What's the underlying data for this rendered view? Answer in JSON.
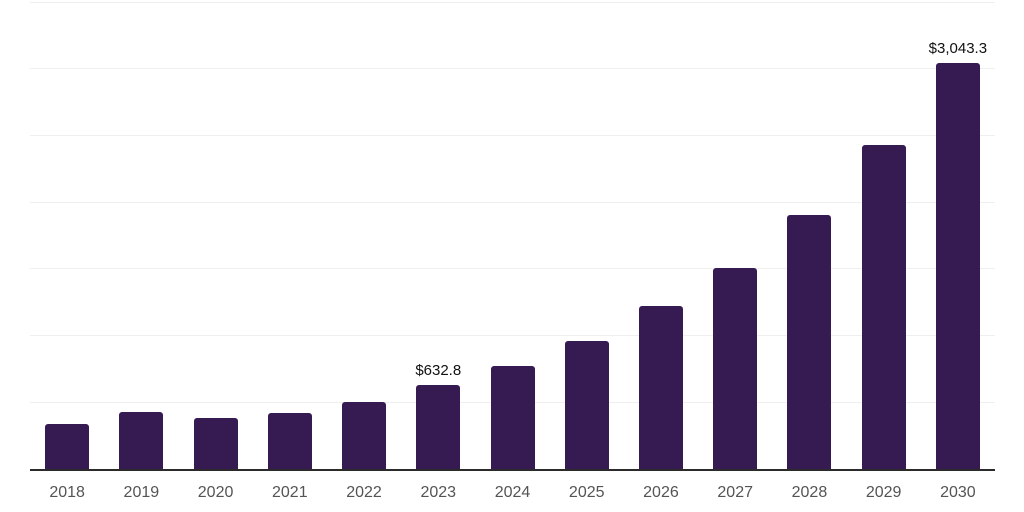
{
  "chart_data": {
    "type": "bar",
    "title": "",
    "xlabel": "",
    "ylabel": "",
    "categories": [
      "2018",
      "2019",
      "2020",
      "2021",
      "2022",
      "2023",
      "2024",
      "2025",
      "2026",
      "2027",
      "2028",
      "2029",
      "2030"
    ],
    "values": [
      335,
      425,
      380,
      420,
      505,
      632.8,
      775,
      960,
      1220,
      1510,
      1905,
      2425,
      3043.3
    ],
    "value_labels": [
      "",
      "",
      "",
      "",
      "",
      "$632.8",
      "",
      "",
      "",
      "",
      "",
      "",
      "$3,043.3"
    ],
    "ylim": [
      0,
      3500
    ],
    "gridline_step": 500,
    "grid": true,
    "legend": false,
    "y_tick_labels_visible": false,
    "bar_color": "#361a52",
    "axis_line_color": "#2b2b2b",
    "gridline_color": "#efefef",
    "tick_label_color": "#545454",
    "data_label_color": "#111111",
    "background_color": "#ffffff"
  }
}
